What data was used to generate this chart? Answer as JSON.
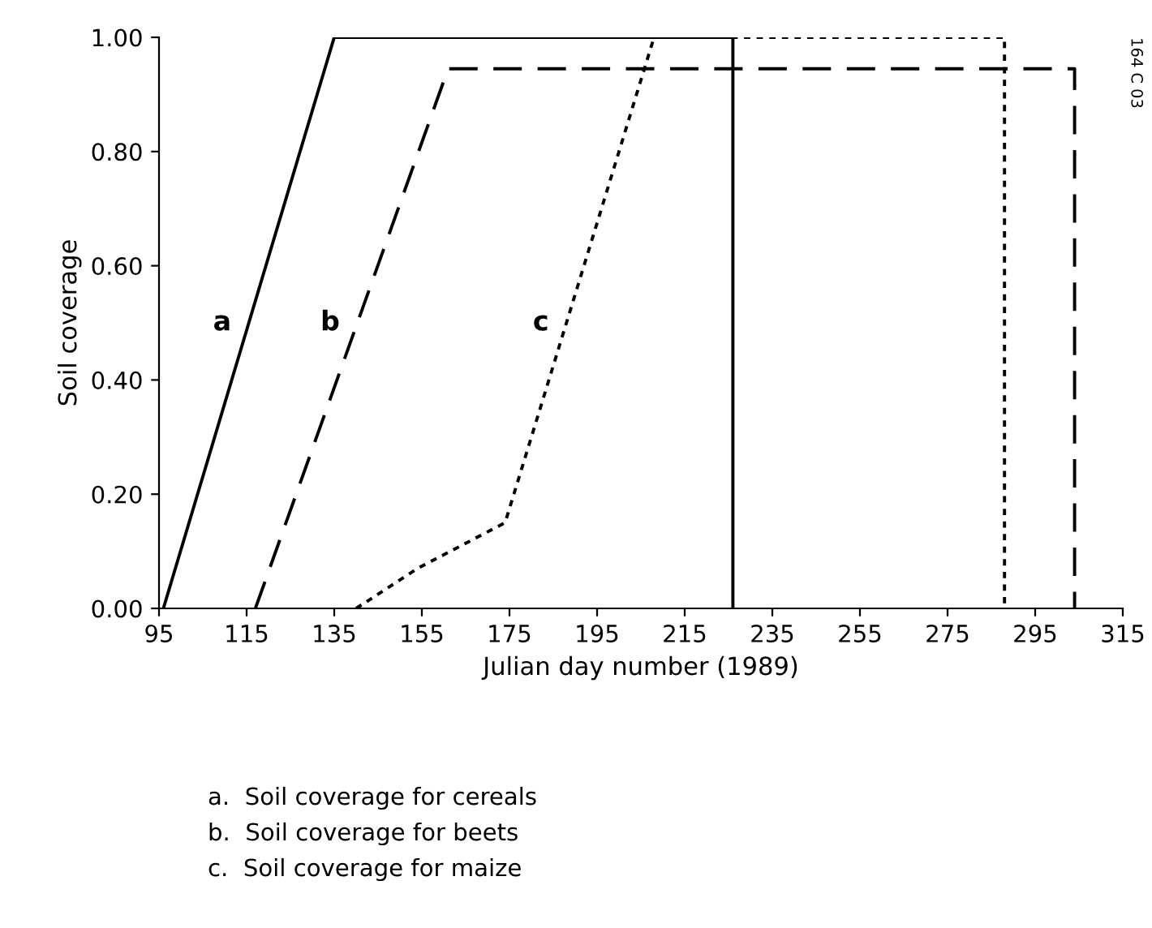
{
  "chart_data": {
    "type": "line",
    "xlabel": "Julian day number (1989)",
    "ylabel": "Soil coverage",
    "xlim": [
      95,
      315
    ],
    "xticks": [
      95,
      115,
      135,
      155,
      175,
      195,
      215,
      235,
      255,
      275,
      295,
      315
    ],
    "ylim": [
      0,
      1
    ],
    "yticks": [
      {
        "value": 0,
        "label": "0.00"
      },
      {
        "value": 0.2,
        "label": "0.20"
      },
      {
        "value": 0.4,
        "label": "0.40"
      },
      {
        "value": 0.6,
        "label": "0.60"
      },
      {
        "value": 0.8,
        "label": "0.80"
      },
      {
        "value": 1,
        "label": "1.00"
      }
    ],
    "grid": false,
    "legend": false,
    "marker": "none",
    "series": [
      {
        "name": "a",
        "color": "#000000",
        "line_style": "solid",
        "x": [
          96,
          135,
          226,
          226
        ],
        "values": [
          0,
          1,
          1,
          0
        ]
      },
      {
        "name": "b",
        "color": "#000000",
        "line_style": "dashed",
        "x": [
          117,
          161,
          304,
          304
        ],
        "values": [
          0,
          0.945,
          0.945,
          0
        ]
      },
      {
        "name": "c",
        "color": "#000000",
        "line_style": "dotted",
        "x": [
          140,
          154,
          174,
          208,
          288,
          288
        ],
        "values": [
          0,
          0.07,
          0.15,
          1,
          1,
          0
        ]
      }
    ],
    "annotations": [
      "164 C 03",
      "a.  Soil coverage for cereals",
      "b.  Soil coverage for beets",
      "c.  Soil coverage for maize"
    ]
  }
}
